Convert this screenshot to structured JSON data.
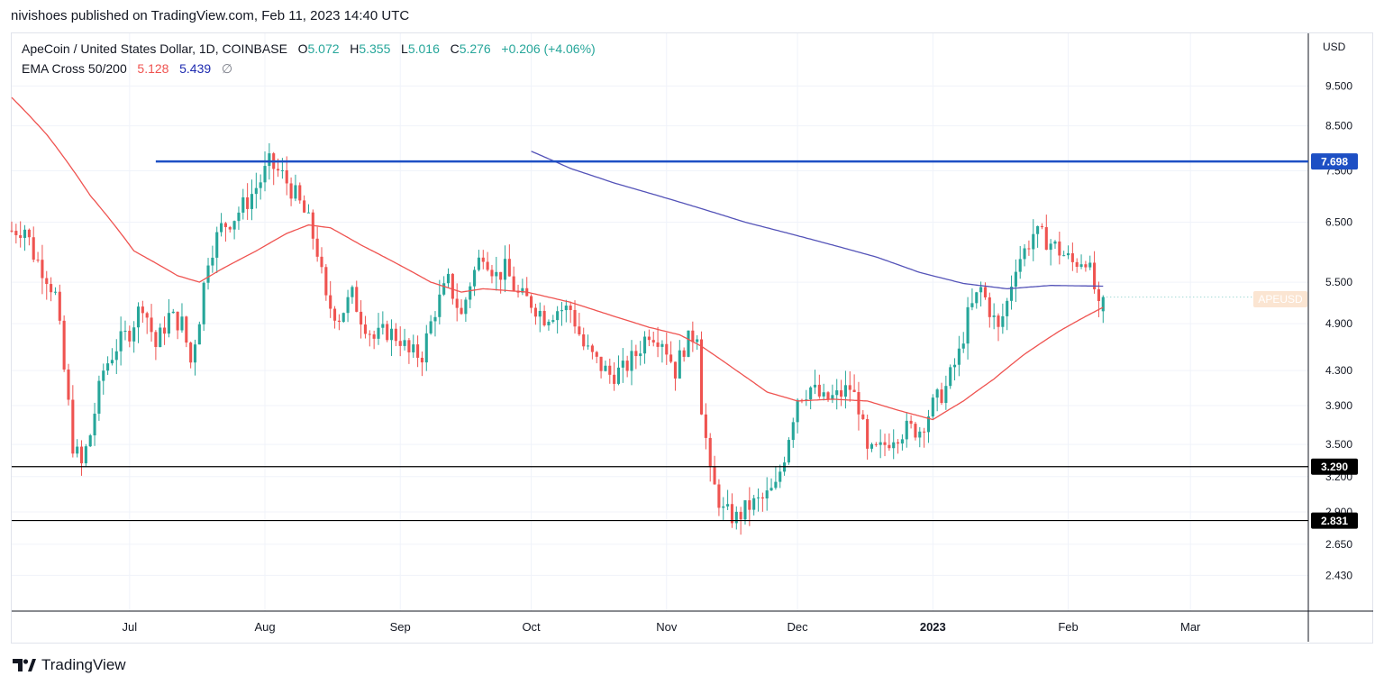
{
  "header": {
    "published_by": "nivishoes published on TradingView.com, Feb 11, 2023 14:40 UTC"
  },
  "legend": {
    "symbol": "ApeCoin / United States Dollar, 1D, COINBASE",
    "open_label": "O",
    "open": "5.072",
    "high_label": "H",
    "high": "5.355",
    "low_label": "L",
    "low": "5.016",
    "close_label": "C",
    "close": "5.276",
    "change": "+0.206 (+4.06%)",
    "indicator": "EMA Cross 50/200",
    "ema_fast": "5.128",
    "ema_slow": "5.439",
    "null_symbol": "∅"
  },
  "symbol_tag": "APEUSD",
  "brand": {
    "name": "TradingView"
  },
  "colors": {
    "up": "#26a69a",
    "down": "#ef5350",
    "ema_fast": "#ef5350",
    "ema_slow": "#5453b8",
    "resistance": "#1d4fc4",
    "support": "#000000",
    "grid": "#f0f3fa"
  },
  "chart_data": {
    "type": "candlestick",
    "title": "ApeCoin / United States Dollar, 1D, COINBASE",
    "currency_label": "USD",
    "y_scale": "log",
    "ylim": [
      2.2,
      11.0
    ],
    "y_ticks": [
      "9.500",
      "8.500",
      "7.500",
      "6.500",
      "5.500",
      "4.900",
      "4.300",
      "3.900",
      "3.500",
      "3.200",
      "2.900",
      "2.650",
      "2.430"
    ],
    "x_ticks": [
      {
        "label": "Jul",
        "day": 19,
        "bold": false
      },
      {
        "label": "Aug",
        "day": 50,
        "bold": false
      },
      {
        "label": "Sep",
        "day": 81,
        "bold": false
      },
      {
        "label": "Oct",
        "day": 111,
        "bold": false
      },
      {
        "label": "Nov",
        "day": 142,
        "bold": false
      },
      {
        "label": "Dec",
        "day": 172,
        "bold": false
      },
      {
        "label": "2023",
        "day": 203,
        "bold": true
      },
      {
        "label": "Feb",
        "day": 234,
        "bold": false
      },
      {
        "label": "Mar",
        "day": 262,
        "bold": false
      }
    ],
    "x_range": [
      -8,
      289
    ],
    "price_path": [
      [
        -8,
        6.35
      ],
      [
        -5,
        6.4
      ],
      [
        -3,
        5.95
      ],
      [
        0,
        5.6
      ],
      [
        2,
        5.3
      ],
      [
        4,
        4.3
      ],
      [
        6,
        3.5
      ],
      [
        8,
        3.3
      ],
      [
        10,
        3.6
      ],
      [
        13,
        4.3
      ],
      [
        16,
        4.6
      ],
      [
        19,
        4.8
      ],
      [
        22,
        5.2
      ],
      [
        25,
        4.6
      ],
      [
        28,
        5.0
      ],
      [
        31,
        4.9
      ],
      [
        33,
        4.4
      ],
      [
        35,
        5.0
      ],
      [
        37,
        5.9
      ],
      [
        40,
        6.4
      ],
      [
        43,
        6.6
      ],
      [
        46,
        6.9
      ],
      [
        49,
        7.3
      ],
      [
        51,
        7.65
      ],
      [
        54,
        7.4
      ],
      [
        57,
        7.0
      ],
      [
        60,
        6.5
      ],
      [
        62,
        6.0
      ],
      [
        64,
        5.2
      ],
      [
        67,
        5.0
      ],
      [
        70,
        5.3
      ],
      [
        72,
        5.0
      ],
      [
        75,
        4.7
      ],
      [
        78,
        4.8
      ],
      [
        81,
        4.7
      ],
      [
        83,
        4.5
      ],
      [
        86,
        4.5
      ],
      [
        89,
        5.1
      ],
      [
        92,
        5.5
      ],
      [
        95,
        5.0
      ],
      [
        97,
        5.5
      ],
      [
        100,
        6.0
      ],
      [
        103,
        5.6
      ],
      [
        105,
        5.7
      ],
      [
        108,
        5.3
      ],
      [
        111,
        5.2
      ],
      [
        114,
        5.0
      ],
      [
        117,
        5.1
      ],
      [
        120,
        5.1
      ],
      [
        123,
        4.6
      ],
      [
        126,
        4.4
      ],
      [
        129,
        4.25
      ],
      [
        132,
        4.3
      ],
      [
        135,
        4.5
      ],
      [
        138,
        4.8
      ],
      [
        141,
        4.7
      ],
      [
        144,
        4.3
      ],
      [
        146,
        4.6
      ],
      [
        149,
        4.8
      ],
      [
        150,
        3.9
      ],
      [
        152,
        3.2
      ],
      [
        155,
        2.9
      ],
      [
        158,
        2.85
      ],
      [
        161,
        2.95
      ],
      [
        164,
        3.0
      ],
      [
        167,
        3.1
      ],
      [
        169,
        3.4
      ],
      [
        172,
        4.0
      ],
      [
        175,
        4.1
      ],
      [
        178,
        3.95
      ],
      [
        181,
        4.0
      ],
      [
        184,
        4.1
      ],
      [
        186,
        3.9
      ],
      [
        188,
        3.4
      ],
      [
        191,
        3.45
      ],
      [
        194,
        3.6
      ],
      [
        197,
        3.65
      ],
      [
        200,
        3.65
      ],
      [
        203,
        3.9
      ],
      [
        206,
        4.1
      ],
      [
        209,
        4.5
      ],
      [
        211,
        5.0
      ],
      [
        214,
        5.4
      ],
      [
        216,
        5.1
      ],
      [
        218,
        4.8
      ],
      [
        220,
        5.2
      ],
      [
        222,
        5.8
      ],
      [
        224,
        6.0
      ],
      [
        226,
        6.3
      ],
      [
        229,
        6.2
      ],
      [
        232,
        6.0
      ],
      [
        235,
        5.8
      ],
      [
        238,
        5.9
      ],
      [
        240,
        5.4
      ],
      [
        241,
        5.07
      ],
      [
        242,
        5.276
      ]
    ],
    "ema_50": [
      [
        -8,
        9.2
      ],
      [
        0,
        8.3
      ],
      [
        10,
        7.0
      ],
      [
        20,
        6.0
      ],
      [
        30,
        5.6
      ],
      [
        35,
        5.5
      ],
      [
        40,
        5.7
      ],
      [
        48,
        6.0
      ],
      [
        55,
        6.3
      ],
      [
        60,
        6.45
      ],
      [
        65,
        6.4
      ],
      [
        72,
        6.1
      ],
      [
        80,
        5.8
      ],
      [
        88,
        5.5
      ],
      [
        95,
        5.35
      ],
      [
        100,
        5.4
      ],
      [
        110,
        5.35
      ],
      [
        120,
        5.2
      ],
      [
        130,
        5.0
      ],
      [
        138,
        4.85
      ],
      [
        145,
        4.75
      ],
      [
        150,
        4.6
      ],
      [
        158,
        4.3
      ],
      [
        165,
        4.05
      ],
      [
        172,
        3.95
      ],
      [
        180,
        3.97
      ],
      [
        188,
        3.95
      ],
      [
        195,
        3.85
      ],
      [
        203,
        3.75
      ],
      [
        210,
        3.95
      ],
      [
        217,
        4.2
      ],
      [
        224,
        4.5
      ],
      [
        232,
        4.8
      ],
      [
        238,
        5.0
      ],
      [
        242,
        5.128
      ]
    ],
    "ema_200": [
      [
        111,
        7.92
      ],
      [
        120,
        7.55
      ],
      [
        130,
        7.25
      ],
      [
        140,
        7.0
      ],
      [
        150,
        6.75
      ],
      [
        160,
        6.5
      ],
      [
        170,
        6.3
      ],
      [
        180,
        6.1
      ],
      [
        190,
        5.9
      ],
      [
        200,
        5.65
      ],
      [
        210,
        5.48
      ],
      [
        220,
        5.4
      ],
      [
        230,
        5.45
      ],
      [
        242,
        5.439
      ]
    ],
    "horizontal_levels": [
      {
        "value": 7.698,
        "label": "7.698",
        "kind": "resistance",
        "from_day": 25
      },
      {
        "value": 3.29,
        "label": "3.290",
        "kind": "support",
        "from_day": -8
      },
      {
        "value": 2.831,
        "label": "2.831",
        "kind": "support",
        "from_day": -8
      }
    ],
    "last_price": 5.276,
    "legend_placement": "top-left"
  }
}
